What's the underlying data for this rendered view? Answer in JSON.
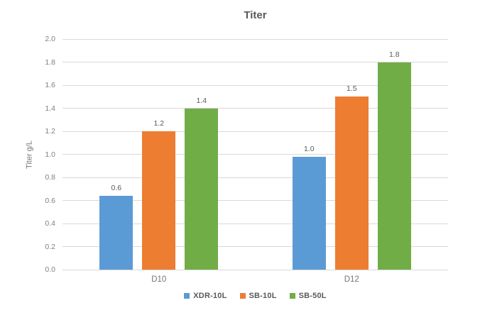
{
  "chart_data": {
    "type": "bar",
    "title": "Titer",
    "xlabel": "",
    "ylabel": "Titer g/L",
    "categories": [
      "D10",
      "D12"
    ],
    "series": [
      {
        "name": "XDR-10L",
        "color": "#5B9BD5",
        "values": [
          0.64,
          0.98
        ],
        "data_labels": [
          "0.6",
          "1.0"
        ]
      },
      {
        "name": "SB-10L",
        "color": "#ED7D31",
        "values": [
          1.2,
          1.5
        ],
        "data_labels": [
          "1.2",
          "1.5"
        ]
      },
      {
        "name": "SB-50L",
        "color": "#70AD47",
        "values": [
          1.4,
          1.8
        ],
        "data_labels": [
          "1.4",
          "1.8"
        ]
      }
    ],
    "ylim": [
      0.0,
      2.0
    ],
    "ytick_step": 0.2,
    "yticks": [
      "0.0",
      "0.2",
      "0.4",
      "0.6",
      "0.8",
      "1.0",
      "1.2",
      "1.4",
      "1.6",
      "1.8",
      "2.0"
    ],
    "grid": true,
    "legend_position": "bottom-center"
  },
  "colors": {
    "gridline": "#D9D9D9",
    "title_text": "#595959",
    "tick_text": "#808080",
    "category_text": "#757575",
    "data_label_text": "#595959",
    "legend_text": "#595959",
    "background": "#FFFFFF"
  }
}
